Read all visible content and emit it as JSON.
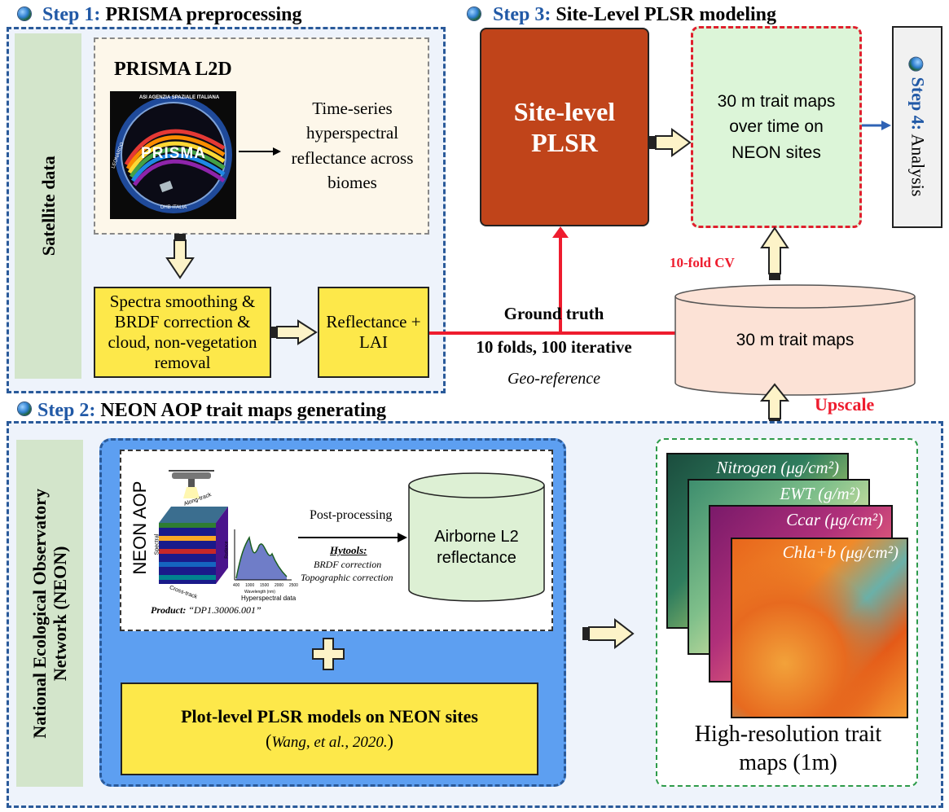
{
  "step1": {
    "num": "Step 1:",
    "title": "PRISMA preprocessing"
  },
  "step2": {
    "num": "Step 2:",
    "title": "NEON AOP trait maps generating"
  },
  "step3": {
    "num": "Step 3:",
    "title": "Site-Level PLSR modeling"
  },
  "step4": {
    "num": "Step 4:",
    "title": "Analysis"
  },
  "satellite_label": "Satellite data",
  "neon_label_line1": "National Ecological Observatory",
  "neon_label_line2": "Network (NEON)",
  "prisma": {
    "title": "PRISMA L2D",
    "logo_text": "PRISMA",
    "logo_ring_text": "ASI AGENZIA SPAZIALE ITALIANA",
    "logo_left_text": "LEONARDO",
    "logo_bottom_text": "OHB ITALIA",
    "description": "Time-series hyperspectral reflectance across biomes"
  },
  "preprocess_box": "Spectra smoothing & BRDF correction & cloud, non-vegetation removal",
  "reflectance_box": "Reflectance + LAI",
  "ground_truth": "Ground truth",
  "folds": "10 folds, 100 iterative",
  "georef": "Geo-reference",
  "plsr_box": "Site-level PLSR",
  "trait_maps_time": "30 m trait maps over time on NEON sites",
  "cv_label": "10-fold CV",
  "trait_maps_30m": "30 m trait maps",
  "upscale": "Upscale",
  "neon_aop": {
    "title": "NEON AOP",
    "post_processing": "Post-processing",
    "hytools": "Hytools:",
    "brdf": "BRDF correction",
    "topo": "Topographic correction",
    "airborne": "Airborne L2 reflectance",
    "product_label": "Product:",
    "product_id": "“DP1.30006.001”",
    "along_track": "Along-track",
    "cross_track": "Cross-track",
    "spectral": "Spectral",
    "hyperspectral_data": "Hyperspectral data",
    "wavelength": "Wavelength (nm)",
    "radiance": "Radiance",
    "ticks": [
      "400",
      "1000",
      "1500",
      "2000",
      "2500"
    ]
  },
  "plot_level": {
    "main": "Plot-level PLSR models on NEON sites",
    "cite_open": "(",
    "cite": "Wang, et al., 2020.",
    "cite_close": ")"
  },
  "maps": [
    "Nitrogen (μg/cm²)",
    "EWT (g/m²)",
    "Ccar (μg/cm²)",
    "Chla+b (μg/cm²)"
  ],
  "hires_caption": "High-resolution trait maps (1m)",
  "colors": {
    "panel_border": "#2a5a9a",
    "step_blue": "#2159a6",
    "plsr_fill": "#c0441a",
    "red_line": "#ee1c2e",
    "yellow_box": "#fde84a",
    "green_label": "#d3e5cb",
    "trait_fill": "#dcf5d8",
    "cylinder_fill": "#fce2d6",
    "airborne_fill": "#ddf0d4",
    "neon_blue": "#5d9ff1"
  },
  "icons": [
    "globe-icon",
    "right-arrow-icon",
    "up-arrow-icon",
    "down-arrow-icon",
    "plus-icon",
    "drone-icon"
  ]
}
